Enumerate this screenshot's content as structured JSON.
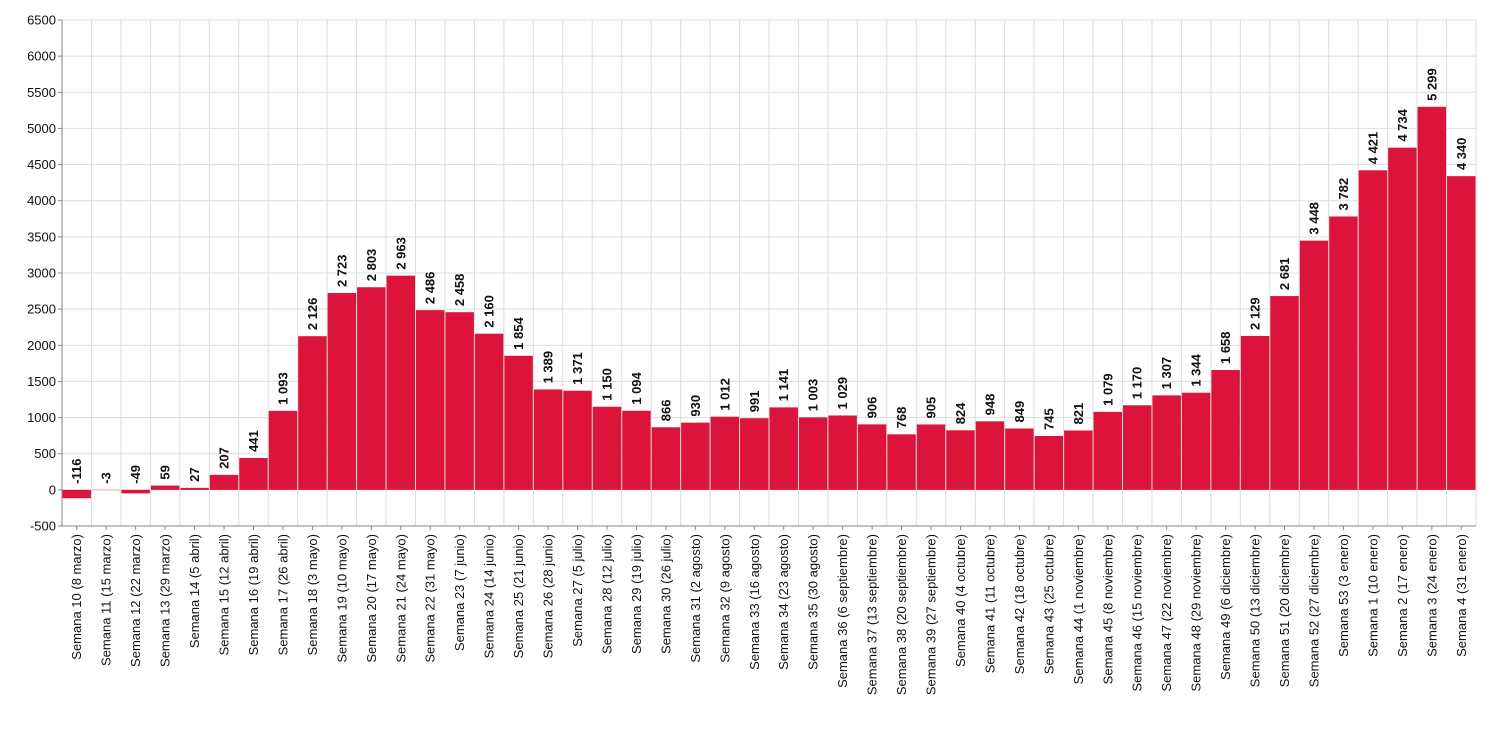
{
  "chart_data": {
    "type": "bar",
    "categories": [
      "Semana 10 (8 marzo)",
      "Semana 11 (15 marzo)",
      "Semana 12 (22 marzo)",
      "Semana 13 (29 marzo)",
      "Semana 14 (5 abril)",
      "Semana 15 (12 abril)",
      "Semana 16 (19 abril)",
      "Semana 17 (26 abril)",
      "Semana 18 (3 mayo)",
      "Semana 19 (10 mayo)",
      "Semana 20 (17 mayo)",
      "Semana 21 (24 mayo)",
      "Semana 22 (31 mayo)",
      "Semana 23 (7 junio)",
      "Semana 24 (14 junio)",
      "Semana 25 (21 junio)",
      "Semana 26 (28 junio)",
      "Semana 27 (5 julio)",
      "Semana 28 (12 julio)",
      "Semana 29 (19 julio)",
      "Semana 30 (26 julio)",
      "Semana 31 (2 agosto)",
      "Semana 32 (9 agosto)",
      "Semana 33 (16 agosto)",
      "Semana 34 (23 agosto)",
      "Semana 35 (30 agosto)",
      "Semana 36 (6 septiembre)",
      "Semana 37 (13 septiembre)",
      "Semana 38 (20 septiembre)",
      "Semana 39 (27 septiembre)",
      "Semana 40 (4 octubre)",
      "Semana 41 (11 octubre)",
      "Semana 42 (18 octubre)",
      "Semana 43 (25 octubre)",
      "Semana 44 (1 noviembre)",
      "Semana 45 (8 noviembre)",
      "Semana 46 (15 noviembre)",
      "Semana 47 (22 noviembre)",
      "Semana 48 (29 noviembre)",
      "Semana 49 (6 diciembre)",
      "Semana 50 (13 diciembre)",
      "Semana 51 (20 diciembre)",
      "Semana 52 (27 diciembre)",
      "Semana 53 (3 enero)",
      "Semana 1 (10 enero)",
      "Semana 2 (17 enero)",
      "Semana 3 (24 enero)",
      "Semana 4 (31 enero)"
    ],
    "values": [
      -116,
      -3,
      -49,
      59,
      27,
      207,
      441,
      1093,
      2126,
      2723,
      2803,
      2963,
      2486,
      2458,
      2160,
      1854,
      1389,
      1371,
      1150,
      1094,
      866,
      930,
      1012,
      991,
      1141,
      1003,
      1029,
      906,
      768,
      905,
      824,
      948,
      849,
      745,
      821,
      1079,
      1170,
      1307,
      1344,
      1658,
      2129,
      2681,
      3448,
      3782,
      4421,
      4734,
      5299,
      4340
    ],
    "value_labels": [
      "-116",
      "-3",
      "-49",
      "59",
      "27",
      "207",
      "441",
      "1 093",
      "2 126",
      "2 723",
      "2 803",
      "2 963",
      "2 486",
      "2 458",
      "2 160",
      "1 854",
      "1 389",
      "1 371",
      "1 150",
      "1 094",
      "866",
      "930",
      "1 012",
      "991",
      "1 141",
      "1 003",
      "1 029",
      "906",
      "768",
      "905",
      "824",
      "948",
      "849",
      "745",
      "821",
      "1 079",
      "1 170",
      "1 307",
      "1 344",
      "1 658",
      "2 129",
      "2 681",
      "3 448",
      "3 782",
      "4 421",
      "4 734",
      "5 299",
      "4 340"
    ],
    "color": "#dc143c",
    "ylim": [
      -500,
      6500
    ],
    "yticks": [
      -500,
      0,
      500,
      1000,
      1500,
      2000,
      2500,
      3000,
      3500,
      4000,
      4500,
      5000,
      5500,
      6000,
      6500
    ],
    "grid": true
  }
}
